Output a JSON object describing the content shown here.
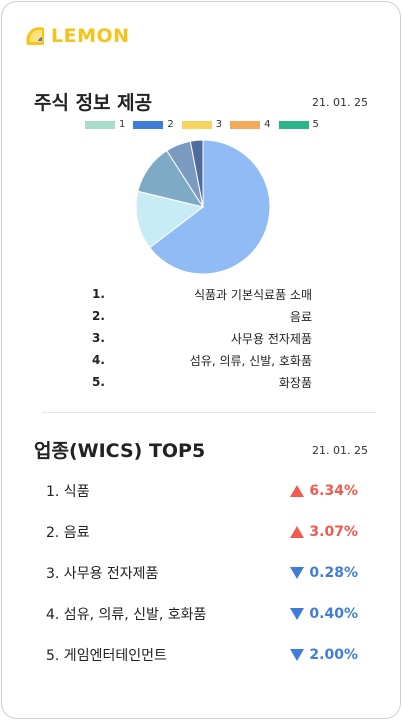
{
  "brand": {
    "name": "LEMON",
    "accent": "#f7c21b"
  },
  "section1": {
    "title": "주식 정보 제공",
    "date": "21. 01. 25",
    "legend": [
      {
        "label": "1",
        "color": "#a9dccb"
      },
      {
        "label": "2",
        "color": "#3f7ed8"
      },
      {
        "label": "3",
        "color": "#f5d461"
      },
      {
        "label": "4",
        "color": "#f3a95a"
      },
      {
        "label": "5",
        "color": "#2bb58a"
      }
    ],
    "pie": {
      "slices": [
        {
          "value": 64,
          "color": "#90bbf5"
        },
        {
          "value": 14,
          "color": "#c8ecf5"
        },
        {
          "value": 12,
          "color": "#7faac6"
        },
        {
          "value": 6,
          "color": "#7b9ac2"
        },
        {
          "value": 3,
          "color": "#4f6c9a"
        }
      ]
    },
    "ranking": [
      {
        "num": "1.",
        "name": "식품과 기본식료품 소매"
      },
      {
        "num": "2.",
        "name": "음료"
      },
      {
        "num": "3.",
        "name": "사무용 전자제품"
      },
      {
        "num": "4.",
        "name": "섬유, 의류, 신발, 호화품"
      },
      {
        "num": "5.",
        "name": "화장품"
      }
    ]
  },
  "section2": {
    "title": "업종(WICS) TOP5",
    "date": "21. 01. 25",
    "items": [
      {
        "name": "1. 식품",
        "value": "6.34%",
        "dir": "up"
      },
      {
        "name": "2. 음료",
        "value": "3.07%",
        "dir": "up"
      },
      {
        "name": "3. 사무용 전자제품",
        "value": "0.28%",
        "dir": "down"
      },
      {
        "name": "4. 섬유, 의류, 신발, 호화품",
        "value": "0.40%",
        "dir": "down"
      },
      {
        "name": "5. 게임엔터테인먼트",
        "value": "2.00%",
        "dir": "down"
      }
    ]
  }
}
